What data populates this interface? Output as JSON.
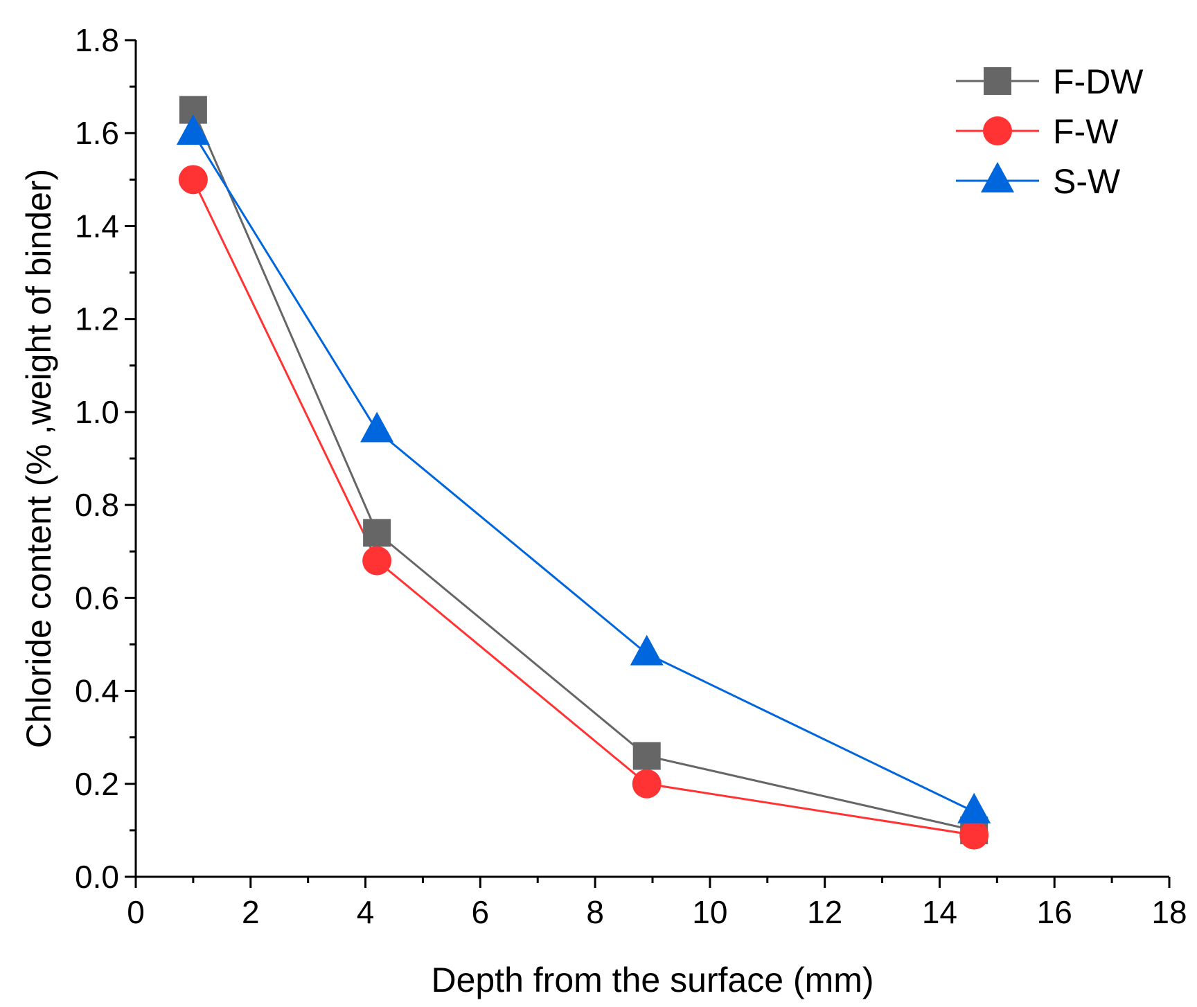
{
  "chart_data": {
    "type": "line",
    "title": "",
    "xlabel": "Depth from the surface (mm)",
    "ylabel": "Chloride content (% ,weight of binder)",
    "xlim": [
      0,
      18
    ],
    "ylim": [
      0,
      1.8
    ],
    "xticks": [
      0,
      2,
      4,
      6,
      8,
      10,
      12,
      14,
      16,
      18
    ],
    "xtick_labels": [
      "0",
      "2",
      "4",
      "6",
      "8",
      "10",
      "12",
      "14",
      "16",
      "18"
    ],
    "yticks": [
      0,
      0.2,
      0.4,
      0.6,
      0.8,
      1.0,
      1.2,
      1.4,
      1.6,
      1.8
    ],
    "ytick_labels": [
      "0.0",
      "0.2",
      "0.4",
      "0.6",
      "0.8",
      "1.0",
      "1.2",
      "1.4",
      "1.6",
      "1.8"
    ],
    "grid": false,
    "legend_position": "top-right",
    "series": [
      {
        "name": "F-DW",
        "marker": "square",
        "color": "#666666",
        "x": [
          1.0,
          4.2,
          8.9,
          14.6
        ],
        "y": [
          1.65,
          0.74,
          0.26,
          0.1
        ]
      },
      {
        "name": "F-W",
        "marker": "circle",
        "color": "#ff3333",
        "x": [
          1.0,
          4.2,
          8.9,
          14.6
        ],
        "y": [
          1.5,
          0.68,
          0.2,
          0.09
        ]
      },
      {
        "name": "S-W",
        "marker": "triangle",
        "color": "#0066dd",
        "x": [
          1.0,
          4.2,
          8.9,
          14.6
        ],
        "y": [
          1.6,
          0.96,
          0.48,
          0.14
        ]
      }
    ]
  }
}
